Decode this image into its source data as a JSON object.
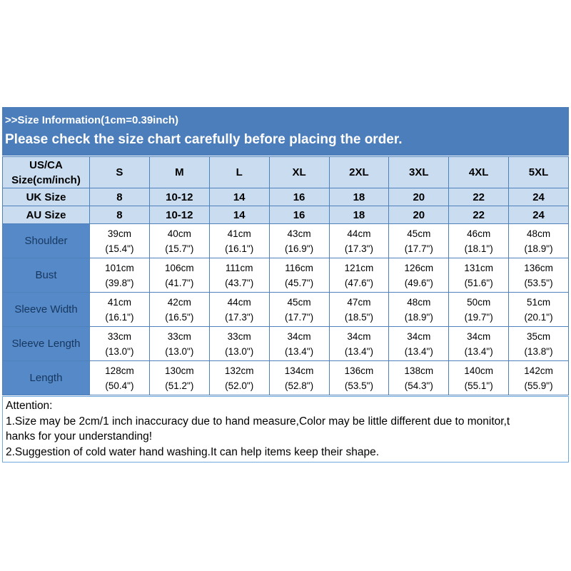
{
  "colors": {
    "banner_bg": "#4C7EBB",
    "light_bg": "#C9DCF0",
    "label_bg": "#5589C8",
    "label_text": "#17375E",
    "border": "#4F81BD",
    "attention_border": "#6FA8DC"
  },
  "banners": {
    "size_info": ">>Size Information(1cm=0.39inch)",
    "check_notice": "Please check the size chart carefully before placing the order."
  },
  "table": {
    "corner": "US/CA\nSize(cm/inch)",
    "sizes": [
      "S",
      "M",
      "L",
      "XL",
      "2XL",
      "3XL",
      "4XL",
      "5XL"
    ],
    "uk": {
      "label": "UK Size",
      "values": [
        "8",
        "10-12",
        "14",
        "16",
        "18",
        "20",
        "22",
        "24"
      ]
    },
    "au": {
      "label": "AU Size",
      "values": [
        "8",
        "10-12",
        "14",
        "16",
        "18",
        "20",
        "22",
        "24"
      ]
    },
    "rows": [
      {
        "label": "Shoulder",
        "values": [
          "39cm\n(15.4\")",
          "40cm\n(15.7\")",
          "41cm\n(16.1\")",
          "43cm\n(16.9\")",
          "44cm\n(17.3\")",
          "45cm\n(17.7\")",
          "46cm\n(18.1\")",
          "48cm\n(18.9\")"
        ]
      },
      {
        "label": "Bust",
        "values": [
          "101cm\n(39.8\")",
          "106cm\n(41.7\")",
          "111cm\n(43.7\")",
          "116cm\n(45.7\")",
          "121cm\n(47.6\")",
          "126cm\n(49.6\")",
          "131cm\n(51.6\")",
          "136cm\n(53.5\")"
        ]
      },
      {
        "label": "Sleeve Width",
        "values": [
          "41cm\n(16.1\")",
          "42cm\n(16.5\")",
          "44cm\n(17.3\")",
          "45cm\n(17.7\")",
          "47cm\n(18.5\")",
          "48cm\n(18.9\")",
          "50cm\n(19.7\")",
          "51cm\n(20.1\")"
        ]
      },
      {
        "label": "Sleeve Length",
        "values": [
          "33cm\n(13.0\")",
          "33cm\n(13.0\")",
          "33cm\n(13.0\")",
          "34cm\n(13.4\")",
          "34cm\n(13.4\")",
          "34cm\n(13.4\")",
          "34cm\n(13.4\")",
          "35cm\n(13.8\")"
        ]
      },
      {
        "label": "Length",
        "values": [
          "128cm\n(50.4\")",
          "130cm\n(51.2\")",
          "132cm\n(52.0\")",
          "134cm\n(52.8\")",
          "136cm\n(53.5\")",
          "138cm\n(54.3\")",
          "140cm\n(55.1\")",
          "142cm\n(55.9\")"
        ]
      }
    ]
  },
  "attention": {
    "title": "Attention:",
    "lines": [
      "1.Size may be 2cm/1 inch inaccuracy due to hand measure,Color may be little different due to monitor,t",
      "hanks for your understanding!",
      "2.Suggestion of cold water hand washing.It can help items keep their shape."
    ]
  }
}
